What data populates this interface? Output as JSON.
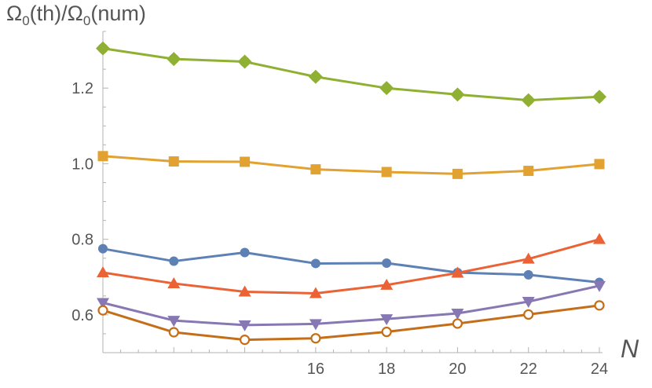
{
  "chart_data": {
    "type": "line",
    "ylabel_parts": {
      "omega1": "Ω",
      "sub1": "0",
      "mid": "(th)/",
      "omega2": "Ω",
      "sub2": "0",
      "end": "(num)"
    },
    "xlabel": "N",
    "x": [
      10,
      12,
      14,
      16,
      18,
      20,
      22,
      24
    ],
    "xticks": [
      16,
      18,
      20,
      22,
      24
    ],
    "yticks": [
      0.6,
      0.8,
      1.0,
      1.2
    ],
    "ytick_labels": [
      "0.6",
      "0.8",
      "1.0",
      "1.2"
    ],
    "xlim": [
      10,
      24
    ],
    "ylim": [
      0.5,
      1.35
    ],
    "grid": false,
    "series": [
      {
        "marker": "diamond",
        "color": "#8fb032",
        "values": [
          1.305,
          1.277,
          1.27,
          1.23,
          1.2,
          1.183,
          1.168,
          1.177
        ]
      },
      {
        "marker": "square",
        "color": "#e1a232",
        "values": [
          1.02,
          1.006,
          1.005,
          0.985,
          0.978,
          0.973,
          0.981,
          0.999
        ]
      },
      {
        "marker": "circle",
        "color": "#5e81b5",
        "values": [
          0.775,
          0.742,
          0.765,
          0.736,
          0.737,
          0.712,
          0.706,
          0.686
        ]
      },
      {
        "marker": "triangle-up",
        "color": "#eb6235",
        "values": [
          0.712,
          0.683,
          0.661,
          0.657,
          0.679,
          0.711,
          0.748,
          0.8
        ]
      },
      {
        "marker": "triangle-down",
        "color": "#8778b3",
        "values": [
          0.632,
          0.585,
          0.573,
          0.576,
          0.589,
          0.604,
          0.635,
          0.677
        ]
      },
      {
        "marker": "open-circle",
        "color": "#c56e1a",
        "values": [
          0.612,
          0.554,
          0.534,
          0.538,
          0.555,
          0.577,
          0.601,
          0.625
        ]
      }
    ]
  }
}
